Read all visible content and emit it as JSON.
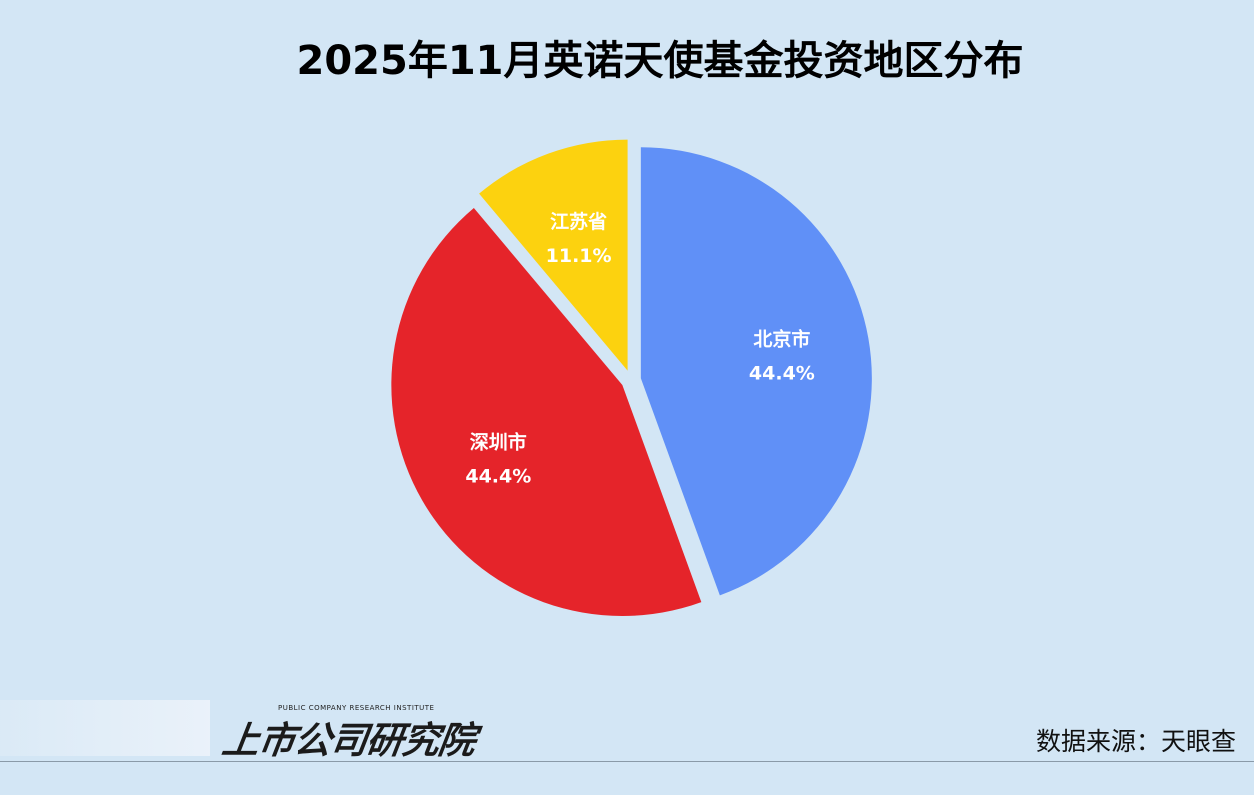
{
  "chart_data": {
    "type": "pie",
    "title": "2025年11月英诺天使基金投资地区分布",
    "categories": [
      "北京市",
      "深圳市",
      "江苏省"
    ],
    "values": [
      44.4,
      44.4,
      11.1
    ],
    "value_labels": [
      "44.4%",
      "44.4%",
      "11.1%"
    ],
    "colors": [
      "#6090f7",
      "#e5242a",
      "#fcd20f"
    ],
    "exploded": true,
    "legend": "none"
  },
  "footer": {
    "logo_text": "上市公司研究院",
    "logo_tagline": "PUBLIC COMPANY RESEARCH INSTITUTE",
    "source": "数据来源：天眼查"
  }
}
